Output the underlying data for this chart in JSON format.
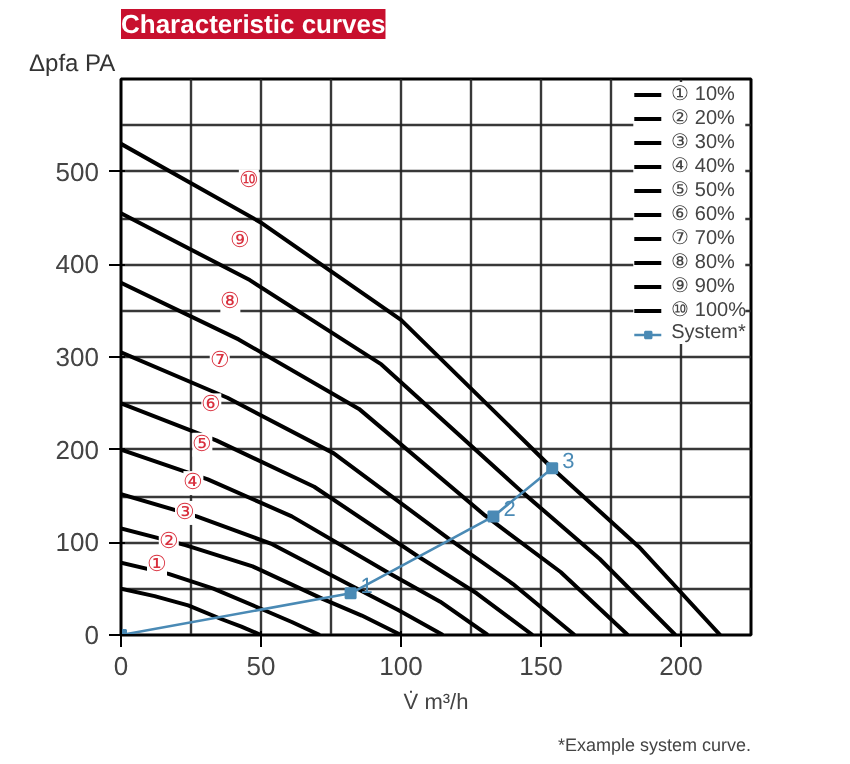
{
  "chart_data": {
    "type": "line",
    "title": "Characteristic curves",
    "xlabel": "V̇ m³/h",
    "ylabel": "Δpfa PA",
    "xlim": [
      0,
      225
    ],
    "ylim": [
      0,
      600
    ],
    "xticks": [
      0,
      50,
      100,
      150,
      200
    ],
    "yticks": [
      0,
      100,
      200,
      300,
      400,
      500
    ],
    "grid": true,
    "legend": "top right",
    "marker": "none",
    "line_style": "solid",
    "series": [
      {
        "name": "① 10%",
        "color": "#000000",
        "x": [
          0,
          12,
          24,
          36,
          43,
          50
        ],
        "values": [
          50,
          42,
          32,
          17,
          9,
          0
        ]
      },
      {
        "name": "② 20%",
        "color": "#000000",
        "x": [
          0,
          17,
          33,
          51,
          61,
          71
        ],
        "values": [
          78,
          66,
          50,
          27,
          14,
          0
        ]
      },
      {
        "name": "③ 30%",
        "color": "#000000",
        "x": [
          0,
          23,
          47,
          72,
          86,
          100
        ],
        "values": [
          115,
          97,
          74,
          39,
          21,
          0
        ]
      },
      {
        "name": "④ 40%",
        "color": "#000000",
        "x": [
          0,
          27,
          54,
          83,
          99,
          115
        ],
        "values": [
          152,
          128,
          98,
          52,
          27,
          0
        ]
      },
      {
        "name": "⑤ 50%",
        "color": "#000000",
        "x": [
          0,
          31,
          61,
          95,
          114,
          131
        ],
        "values": [
          200,
          168,
          128,
          68,
          36,
          0
        ]
      },
      {
        "name": "⑥ 60%",
        "color": "#000000",
        "x": [
          0,
          34,
          69,
          106,
          127,
          147
        ],
        "values": [
          250,
          210,
          160,
          85,
          45,
          0
        ]
      },
      {
        "name": "⑦ 70%",
        "color": "#000000",
        "x": [
          0,
          38,
          76,
          117,
          140,
          162
        ],
        "values": [
          305,
          256,
          196,
          104,
          55,
          0
        ]
      },
      {
        "name": "⑧ 80%",
        "color": "#000000",
        "x": [
          0,
          42,
          85,
          130,
          157,
          181
        ],
        "values": [
          380,
          319,
          244,
          129,
          68,
          0
        ]
      },
      {
        "name": "⑨ 90%",
        "color": "#000000",
        "x": [
          0,
          46,
          93,
          143,
          171,
          198
        ],
        "values": [
          455,
          383,
          292,
          155,
          82,
          0
        ]
      },
      {
        "name": "⑩ 100%",
        "color": "#000000",
        "x": [
          0,
          50,
          100,
          154,
          185,
          214
        ],
        "values": [
          530,
          445,
          340,
          180,
          95,
          0
        ]
      },
      {
        "name": "System*",
        "color": "#4a8ab5",
        "marker": "square",
        "x": [
          0,
          82,
          133,
          154
        ],
        "values": [
          0,
          45,
          128,
          180
        ]
      }
    ],
    "annotations": [
      "①",
      "②",
      "③",
      "④",
      "⑤",
      "⑥",
      "⑦",
      "⑧",
      "⑨",
      "⑩",
      {
        "text": "1",
        "x": 82,
        "y": 45
      },
      {
        "text": "2",
        "x": 133,
        "y": 128
      },
      {
        "text": "3",
        "x": 154,
        "y": 180
      },
      "*Example system curve."
    ]
  }
}
